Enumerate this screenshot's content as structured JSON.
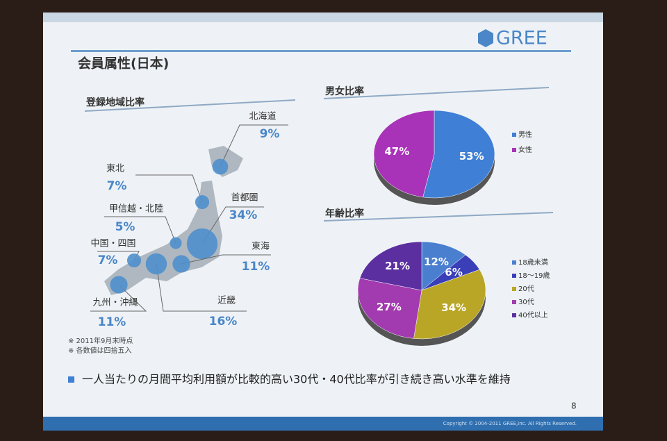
{
  "slide": {
    "title": "会員属性(日本)",
    "logo": "GREE",
    "page": "8",
    "copyright": "Copyright © 2004-2011 GREE,Inc. All Rights Reserved.",
    "bullet": "一人当たりの月間平均利用額が比較的高い30代・40代比率が引き続き高い水準を維持",
    "notes": [
      "※ 2011年9月末時点",
      "※ 各数値は四捨五入"
    ]
  },
  "chart_data": [
    {
      "type": "bubble-map",
      "title": "登録地域比率",
      "categories": [
        "北海道",
        "東北",
        "甲信越・北陸",
        "首都圏",
        "中国・四国",
        "東海",
        "九州・沖縄",
        "近畿"
      ],
      "values": [
        9,
        7,
        5,
        34,
        7,
        11,
        11,
        16
      ],
      "value_labels": [
        "9%",
        "7%",
        "5%",
        "34%",
        "7%",
        "11%",
        "11%",
        "16%"
      ],
      "color": "#4f8fcc"
    },
    {
      "type": "pie",
      "title": "男女比率",
      "categories": [
        "男性",
        "女性"
      ],
      "values": [
        53,
        47
      ],
      "value_labels": [
        "53%",
        "47%"
      ],
      "colors": [
        "#3f7fd6",
        "#a833b8"
      ]
    },
    {
      "type": "pie",
      "title": "年齢比率",
      "categories": [
        "18歳未満",
        "18〜19歳",
        "20代",
        "30代",
        "40代以上"
      ],
      "values": [
        12,
        6,
        34,
        27,
        21
      ],
      "value_labels": [
        "12%",
        "6%",
        "34%",
        "27%",
        "21%"
      ],
      "colors": [
        "#4a7fd0",
        "#3a3fb8",
        "#b9a626",
        "#a33bb0",
        "#5b2fa0"
      ]
    }
  ]
}
